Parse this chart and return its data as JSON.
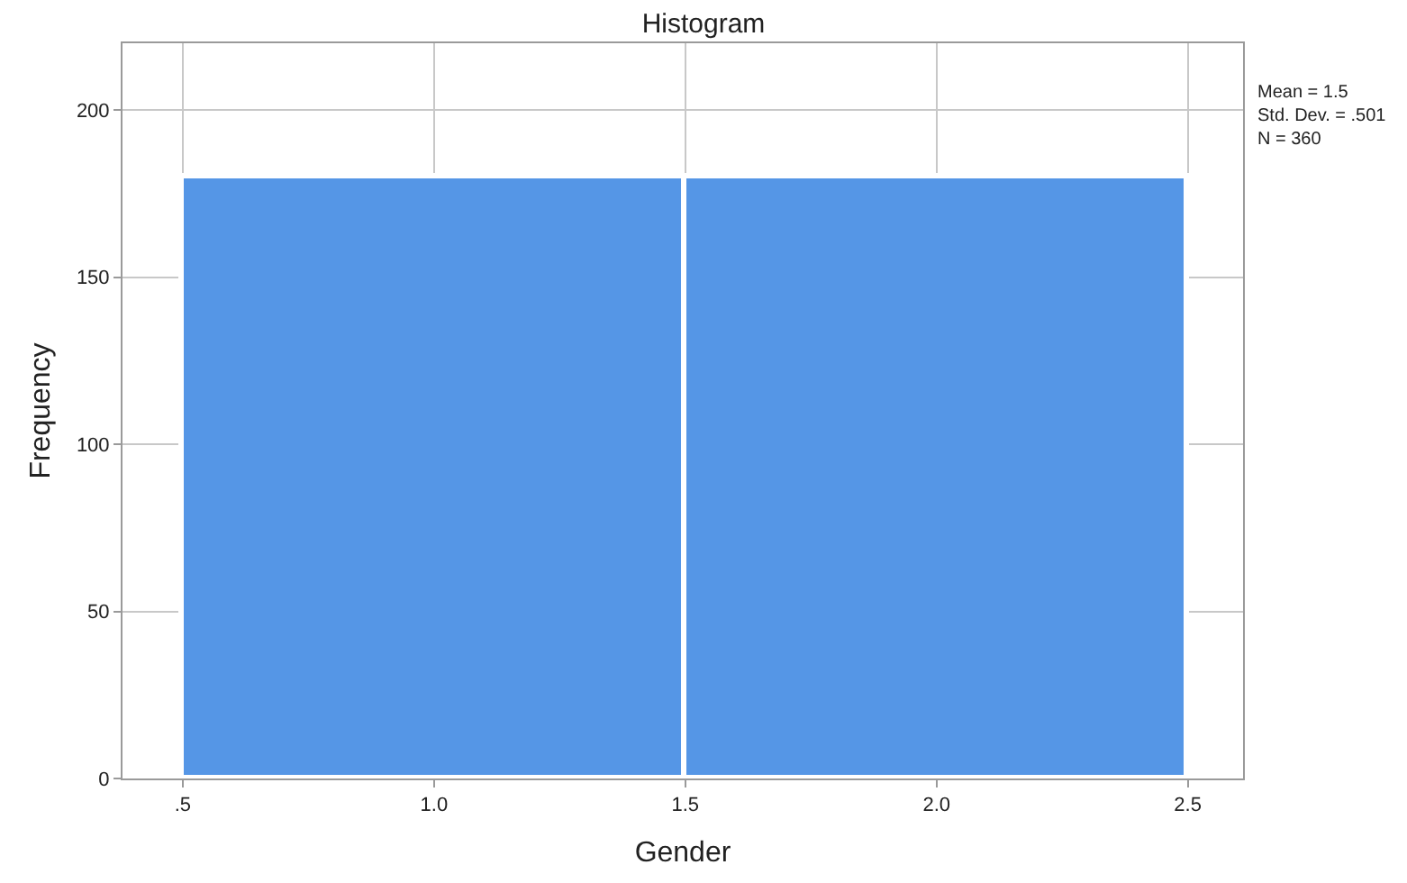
{
  "chart_data": {
    "type": "histogram",
    "title": "Histogram",
    "xlabel": "Gender",
    "ylabel": "Frequency",
    "bins": [
      0.5,
      1.5,
      2.5
    ],
    "values": [
      180,
      180
    ],
    "color": "#5596e6",
    "xlim": [
      0.38,
      2.61
    ],
    "xticks": [
      {
        "value": 0.5,
        "label": ".5"
      },
      {
        "value": 1.0,
        "label": "1.0"
      },
      {
        "value": 1.5,
        "label": "1.5"
      },
      {
        "value": 2.0,
        "label": "2.0"
      },
      {
        "value": 2.5,
        "label": "2.5"
      }
    ],
    "ylim": [
      0,
      220
    ],
    "yticks": [
      0,
      50,
      100,
      150,
      200
    ],
    "grid": true,
    "annotations": [
      "Mean = 1.5\nStd. Dev. = .501\nN = 360"
    ]
  }
}
